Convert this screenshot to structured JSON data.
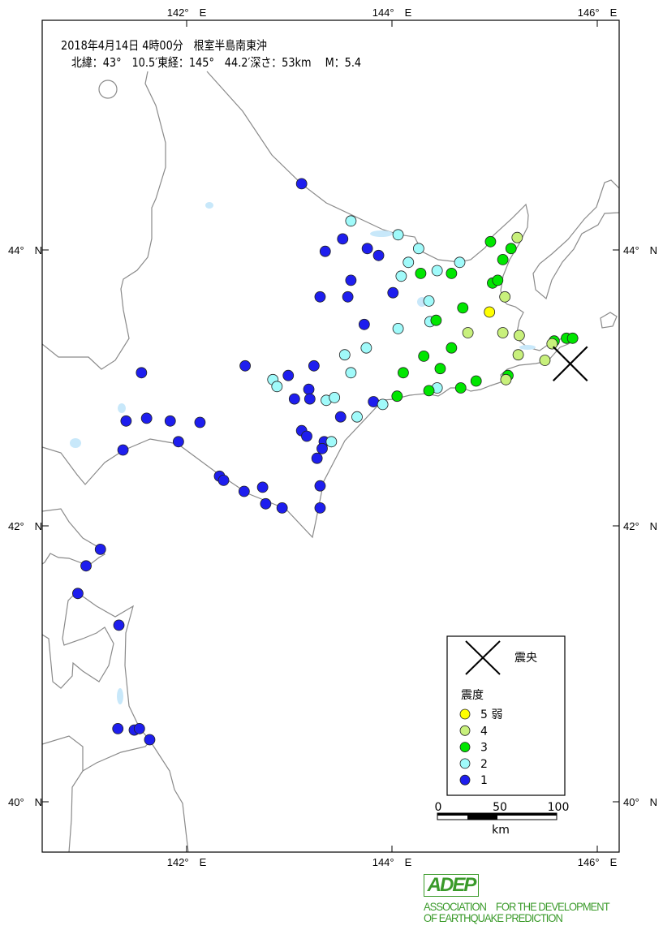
{
  "header": {
    "title": "2018年4月14日 4時00分　根室半島南東沖",
    "details": "北緯：43°　10.5′東経：145°　44.2′深さ：53km　 M：5.4"
  },
  "epicenter": {
    "lat": 43.175,
    "lon": 145.737,
    "depth_km": 53,
    "magnitude": 5.4
  },
  "axes": {
    "lon_ticks": [
      {
        "value": 142,
        "label": "142°　E"
      },
      {
        "value": 144,
        "label": "144°　E"
      },
      {
        "value": 146,
        "label": "146°　E"
      }
    ],
    "lat_ticks": [
      {
        "value": 44,
        "label": "44°　N"
      },
      {
        "value": 42,
        "label": "42°　N"
      },
      {
        "value": 40,
        "label": "40°　N"
      }
    ]
  },
  "legend": {
    "epicenter_label": "震央",
    "intensity_title": "震度",
    "items": [
      {
        "key": "5-",
        "label": "5 弱",
        "color": "#ffff00"
      },
      {
        "key": "4",
        "label": "4",
        "color": "#c8f07c"
      },
      {
        "key": "3",
        "label": "3",
        "color": "#00e600"
      },
      {
        "key": "2",
        "label": "2",
        "color": "#a0fafa"
      },
      {
        "key": "1",
        "label": "1",
        "color": "#1e1eee"
      }
    ]
  },
  "scale_bar": {
    "labels": [
      "0",
      "50",
      "100"
    ],
    "unit": "km"
  },
  "logo": {
    "mark": "ADEP",
    "line1": "ASSOCIATION　FOR THE DEVELOPMENT",
    "line2": "OF EARTHQUAKE PREDICTION"
  },
  "stations": {
    "5-": [
      [
        144.95,
        43.55
      ]
    ],
    "4": [
      [
        145.22,
        44.09
      ],
      [
        145.1,
        43.66
      ],
      [
        144.74,
        43.4
      ],
      [
        145.08,
        43.4
      ],
      [
        145.24,
        43.38
      ],
      [
        145.23,
        43.24
      ],
      [
        145.56,
        43.32
      ],
      [
        145.49,
        43.2
      ],
      [
        145.11,
        43.06
      ]
    ],
    "3": [
      [
        144.96,
        44.06
      ],
      [
        145.16,
        44.01
      ],
      [
        145.08,
        43.93
      ],
      [
        144.28,
        43.83
      ],
      [
        144.58,
        43.83
      ],
      [
        144.98,
        43.76
      ],
      [
        145.03,
        43.78
      ],
      [
        144.69,
        43.58
      ],
      [
        144.43,
        43.49
      ],
      [
        144.58,
        43.29
      ],
      [
        144.31,
        43.23
      ],
      [
        144.47,
        43.14
      ],
      [
        144.11,
        43.11
      ],
      [
        144.82,
        43.05
      ],
      [
        144.67,
        43.0
      ],
      [
        144.36,
        42.98
      ],
      [
        144.05,
        42.94
      ],
      [
        145.13,
        43.09
      ],
      [
        145.7,
        43.36
      ],
      [
        145.76,
        43.36
      ],
      [
        145.58,
        43.34
      ]
    ],
    "2": [
      [
        143.6,
        44.21
      ],
      [
        144.06,
        44.11
      ],
      [
        144.26,
        44.01
      ],
      [
        144.16,
        43.91
      ],
      [
        144.66,
        43.91
      ],
      [
        144.44,
        43.85
      ],
      [
        144.09,
        43.81
      ],
      [
        144.36,
        43.63
      ],
      [
        144.06,
        43.43
      ],
      [
        144.37,
        43.48
      ],
      [
        143.75,
        43.29
      ],
      [
        143.54,
        43.24
      ],
      [
        143.6,
        43.11
      ],
      [
        142.84,
        43.06
      ],
      [
        142.88,
        43.01
      ],
      [
        143.36,
        42.91
      ],
      [
        143.44,
        42.93
      ],
      [
        143.66,
        42.79
      ],
      [
        143.91,
        42.88
      ],
      [
        144.44,
        43.0
      ],
      [
        143.41,
        42.61
      ]
    ],
    "1": [
      [
        143.12,
        44.48
      ],
      [
        143.52,
        44.08
      ],
      [
        143.35,
        43.99
      ],
      [
        143.76,
        44.01
      ],
      [
        143.87,
        43.96
      ],
      [
        143.6,
        43.78
      ],
      [
        143.57,
        43.66
      ],
      [
        143.3,
        43.66
      ],
      [
        144.01,
        43.69
      ],
      [
        143.73,
        43.46
      ],
      [
        143.24,
        43.16
      ],
      [
        142.57,
        43.16
      ],
      [
        141.56,
        43.11
      ],
      [
        142.99,
        43.09
      ],
      [
        143.19,
        42.99
      ],
      [
        143.05,
        42.92
      ],
      [
        143.2,
        42.92
      ],
      [
        143.82,
        42.9
      ],
      [
        143.5,
        42.79
      ],
      [
        141.41,
        42.76
      ],
      [
        141.61,
        42.78
      ],
      [
        141.84,
        42.76
      ],
      [
        142.13,
        42.75
      ],
      [
        143.12,
        42.69
      ],
      [
        143.17,
        42.65
      ],
      [
        141.92,
        42.61
      ],
      [
        141.38,
        42.55
      ],
      [
        143.34,
        42.61
      ],
      [
        143.32,
        42.56
      ],
      [
        143.27,
        42.49
      ],
      [
        142.32,
        42.36
      ],
      [
        142.36,
        42.33
      ],
      [
        142.56,
        42.25
      ],
      [
        142.74,
        42.28
      ],
      [
        143.3,
        42.29
      ],
      [
        142.77,
        42.16
      ],
      [
        142.93,
        42.13
      ],
      [
        143.3,
        42.13
      ],
      [
        141.16,
        41.83
      ],
      [
        141.02,
        41.71
      ],
      [
        140.94,
        41.51
      ],
      [
        141.34,
        41.28
      ],
      [
        141.33,
        40.53
      ],
      [
        141.49,
        40.52
      ],
      [
        141.54,
        40.53
      ],
      [
        141.64,
        40.45
      ]
    ]
  }
}
